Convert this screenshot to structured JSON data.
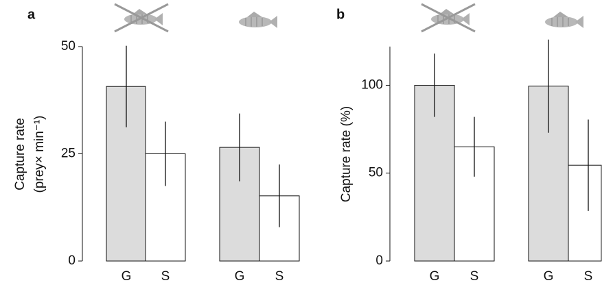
{
  "chart_data": [
    {
      "type": "bar",
      "panel": "a",
      "ylabel": "Capture rate",
      "ylabel2": "(prey× min⁻¹)",
      "categories": [
        "G",
        "S",
        "G",
        "S"
      ],
      "values": [
        40.7,
        25,
        26.5,
        15.2
      ],
      "errors": [
        9.5,
        7.5,
        7.9,
        7.3
      ],
      "colors": [
        "#dcdcdc",
        "#ffffff",
        "#dcdcdc",
        "#ffffff"
      ],
      "ylim": [
        0,
        50
      ],
      "yticks": [
        0,
        25,
        50
      ]
    },
    {
      "type": "bar",
      "panel": "b",
      "ylabel": "Capture rate (%)",
      "categories": [
        "G",
        "S",
        "G",
        "S"
      ],
      "values": [
        100,
        65,
        99.5,
        54.5
      ],
      "errors": [
        18,
        17,
        26.5,
        26
      ],
      "colors": [
        "#dcdcdc",
        "#ffffff",
        "#dcdcdc",
        "#ffffff"
      ],
      "ylim": [
        0,
        122
      ],
      "yticks": [
        0,
        50,
        100
      ]
    }
  ]
}
